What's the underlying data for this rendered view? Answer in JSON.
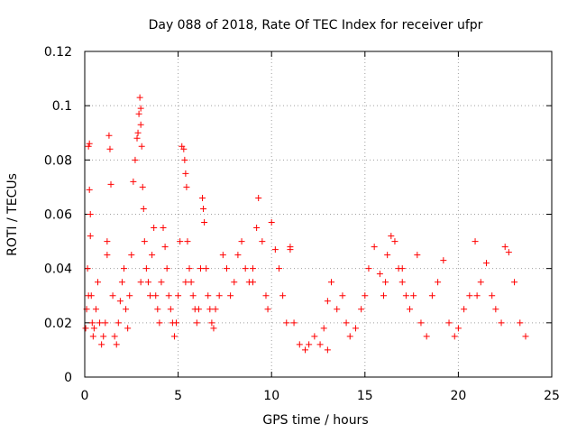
{
  "chart_data": {
    "type": "scatter",
    "title": "Day 088 of 2018, Rate Of TEC Index for receiver ufpr",
    "xlabel": "GPS time / hours",
    "ylabel": "ROTI / TECUs",
    "xlim": [
      0,
      25
    ],
    "ylim": [
      0,
      0.12
    ],
    "xticks": [
      0,
      5,
      10,
      15,
      20,
      25
    ],
    "xtick_labels": [
      "0",
      "5",
      "10",
      "15",
      "20",
      "25"
    ],
    "yticks": [
      0,
      0.02,
      0.04,
      0.06,
      0.08,
      0.1,
      0.12
    ],
    "ytick_labels": [
      "0",
      "0.02",
      "0.04",
      "0.06",
      "0.08",
      "0.1",
      "0.12"
    ],
    "grid": true,
    "marker": "+",
    "color": "#ff0000",
    "series": [
      {
        "name": "ROTI",
        "x": [
          0.05,
          0.1,
          0.15,
          0.2,
          0.25,
          0.25,
          0.3,
          0.3,
          0.35,
          0.4,
          0.45,
          0.5,
          0.6,
          0.7,
          0.8,
          0.9,
          1.0,
          1.1,
          1.2,
          1.3,
          1.35,
          1.4,
          1.5,
          1.6,
          1.7,
          1.8,
          1.9,
          2.0,
          2.1,
          2.2,
          2.3,
          2.4,
          2.5,
          2.6,
          2.7,
          2.8,
          2.85,
          2.9,
          2.95,
          3.0,
          3.0,
          3.05,
          3.1,
          3.15,
          3.2,
          3.3,
          3.4,
          3.5,
          3.6,
          3.7,
          3.8,
          3.9,
          4.0,
          4.1,
          4.2,
          4.3,
          4.4,
          4.5,
          4.6,
          4.7,
          4.8,
          4.9,
          5.0,
          5.1,
          5.2,
          5.3,
          5.35,
          5.4,
          5.45,
          5.5,
          5.6,
          5.7,
          5.8,
          5.9,
          6.0,
          6.1,
          6.2,
          6.3,
          6.35,
          6.4,
          6.5,
          6.6,
          6.7,
          6.8,
          6.9,
          7.0,
          7.2,
          7.4,
          7.6,
          7.8,
          8.0,
          8.2,
          8.4,
          8.6,
          8.8,
          9.0,
          9.2,
          9.3,
          9.5,
          9.7,
          9.8,
          10.0,
          10.2,
          10.4,
          10.6,
          10.8,
          11.0,
          11.0,
          11.2,
          11.5,
          11.8,
          12.0,
          12.3,
          12.6,
          12.8,
          13.0,
          13.2,
          13.5,
          13.8,
          14.0,
          14.2,
          14.5,
          14.8,
          15.0,
          15.2,
          15.5,
          15.8,
          16.0,
          16.1,
          16.2,
          16.4,
          16.6,
          16.8,
          17.0,
          17.2,
          17.4,
          17.6,
          17.8,
          18.0,
          18.3,
          18.6,
          18.9,
          19.2,
          19.5,
          19.8,
          20.0,
          20.3,
          20.6,
          20.9,
          21.2,
          21.5,
          21.8,
          22.0,
          22.3,
          22.5,
          22.7,
          23.0,
          23.3,
          23.6,
          0.2,
          1.2,
          3.0,
          5.4,
          9.0,
          13.0,
          17.0,
          21.0
        ],
        "y": [
          0.018,
          0.025,
          0.04,
          0.085,
          0.086,
          0.069,
          0.06,
          0.052,
          0.03,
          0.02,
          0.015,
          0.018,
          0.025,
          0.035,
          0.02,
          0.012,
          0.015,
          0.02,
          0.05,
          0.089,
          0.084,
          0.071,
          0.03,
          0.015,
          0.012,
          0.02,
          0.028,
          0.035,
          0.04,
          0.025,
          0.018,
          0.03,
          0.045,
          0.072,
          0.08,
          0.088,
          0.09,
          0.097,
          0.103,
          0.099,
          0.093,
          0.085,
          0.07,
          0.062,
          0.05,
          0.04,
          0.035,
          0.03,
          0.045,
          0.055,
          0.03,
          0.025,
          0.02,
          0.035,
          0.055,
          0.048,
          0.04,
          0.03,
          0.025,
          0.02,
          0.015,
          0.02,
          0.03,
          0.05,
          0.085,
          0.084,
          0.08,
          0.075,
          0.07,
          0.05,
          0.04,
          0.035,
          0.03,
          0.025,
          0.02,
          0.025,
          0.04,
          0.066,
          0.062,
          0.057,
          0.04,
          0.03,
          0.025,
          0.02,
          0.018,
          0.025,
          0.03,
          0.045,
          0.04,
          0.03,
          0.035,
          0.045,
          0.05,
          0.04,
          0.035,
          0.04,
          0.055,
          0.066,
          0.05,
          0.03,
          0.025,
          0.057,
          0.047,
          0.04,
          0.03,
          0.02,
          0.047,
          0.048,
          0.02,
          0.012,
          0.01,
          0.012,
          0.015,
          0.012,
          0.018,
          0.028,
          0.035,
          0.025,
          0.03,
          0.02,
          0.015,
          0.018,
          0.025,
          0.03,
          0.04,
          0.048,
          0.038,
          0.03,
          0.035,
          0.045,
          0.052,
          0.05,
          0.04,
          0.035,
          0.03,
          0.025,
          0.03,
          0.045,
          0.02,
          0.015,
          0.03,
          0.035,
          0.043,
          0.02,
          0.015,
          0.018,
          0.025,
          0.03,
          0.05,
          0.035,
          0.042,
          0.03,
          0.025,
          0.02,
          0.048,
          0.046,
          0.035,
          0.02,
          0.015,
          0.03,
          0.045,
          0.035,
          0.035,
          0.035,
          0.01,
          0.04,
          0.03
        ]
      }
    ]
  }
}
